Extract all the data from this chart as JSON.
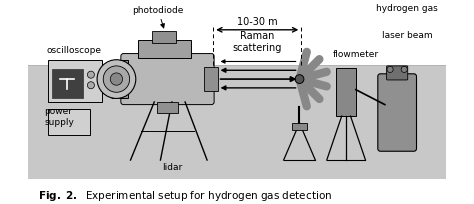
{
  "title": "Fig. 2.",
  "caption": "Experimental setup for hydrogen gas detection",
  "bg_color": "#ffffff",
  "ground_color": "#c8c8c8",
  "figure_size": [
    4.74,
    2.05
  ],
  "dpi": 100,
  "labels": {
    "photodiode": "photodiode",
    "oscilloscope": "oscilloscope",
    "power_supply": "power\nsupply",
    "lidar": "lidar",
    "distance": "10-30 m",
    "raman": "Raman\nscattering",
    "hydrogen_gas": "hydrogen gas",
    "laser_beam": "laser beam",
    "flowmeter": "flowmeter"
  },
  "gray_body": "#b0b0b0",
  "gray_dark": "#707070",
  "gray_mid": "#909090",
  "gray_light": "#d0d0d0"
}
